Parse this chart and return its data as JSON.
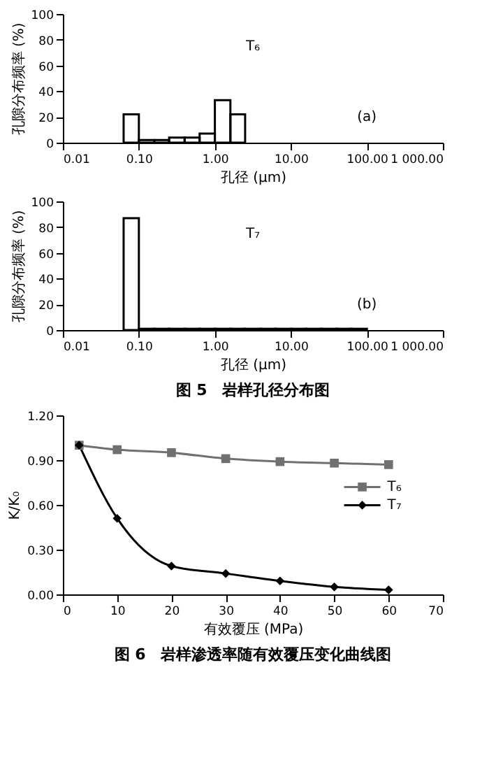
{
  "chart_data": [
    {
      "type": "histogram",
      "xlabel": "孔径 (μm)",
      "ylabel": "孔隙分布频率 (%)",
      "log": "x",
      "color": "#000000",
      "bins": [
        0.063,
        0.1,
        0.16,
        0.25,
        0.4,
        0.63,
        1.0,
        1.6,
        2.5
      ],
      "values": [
        22,
        2,
        2,
        4,
        4,
        7,
        33,
        22
      ],
      "xlim": [
        0.01,
        1000
      ],
      "xticks": [
        {
          "value": 0.01,
          "label": "0.01"
        },
        {
          "value": 0.1,
          "label": "0.10"
        },
        {
          "value": 1,
          "label": "1.00"
        },
        {
          "value": 10,
          "label": "10.00"
        },
        {
          "value": 100,
          "label": "100.00"
        },
        {
          "value": 1000,
          "label": "1 000.00"
        }
      ],
      "ylim": [
        0,
        100
      ],
      "yticks": [
        0,
        20,
        40,
        60,
        80,
        100
      ],
      "grid": false,
      "annotations": [
        "T₆",
        "(a)"
      ]
    },
    {
      "type": "histogram",
      "xlabel": "孔径 (μm)",
      "ylabel": "孔隙分布频率 (%)",
      "log": "x",
      "color": "#000000",
      "bins": [
        0.063,
        0.1,
        0.16,
        0.25,
        0.4,
        0.63,
        1.0,
        1.6,
        2.5,
        4.0,
        6.3,
        10,
        16,
        25,
        40,
        63,
        100
      ],
      "values": [
        87,
        1,
        1,
        1,
        1,
        1,
        1,
        1,
        1,
        1,
        1,
        1,
        1,
        1,
        1,
        1
      ],
      "xlim": [
        0.01,
        1000
      ],
      "xticks": [
        {
          "value": 0.01,
          "label": "0.01"
        },
        {
          "value": 0.1,
          "label": "0.10"
        },
        {
          "value": 1,
          "label": "1.00"
        },
        {
          "value": 10,
          "label": "10.00"
        },
        {
          "value": 100,
          "label": "100.00"
        },
        {
          "value": 1000,
          "label": "1 000.00"
        }
      ],
      "ylim": [
        0,
        100
      ],
      "yticks": [
        0,
        20,
        40,
        60,
        80,
        100
      ],
      "grid": false,
      "annotations": [
        "T₇",
        "(b)",
        "图 5　岩样孔径分布图"
      ]
    },
    {
      "type": "line",
      "xlabel": "有效覆压 (MPa)",
      "ylabel": "K/K₀",
      "x": [
        3,
        10,
        20,
        30,
        40,
        50,
        60
      ],
      "series": [
        {
          "name": "T₆",
          "color": "#707070",
          "marker": "square",
          "values": [
            1.0,
            0.97,
            0.95,
            0.91,
            0.89,
            0.88,
            0.87
          ]
        },
        {
          "name": "T₇",
          "color": "#000000",
          "marker": "diamond",
          "values": [
            1.0,
            0.51,
            0.19,
            0.14,
            0.09,
            0.05,
            0.03
          ]
        }
      ],
      "xlim": [
        0,
        70
      ],
      "xticks": [
        0,
        10,
        20,
        30,
        40,
        50,
        60,
        70
      ],
      "ylim": [
        0,
        1.2
      ],
      "yticks": [
        {
          "value": 0,
          "label": "0.00"
        },
        {
          "value": 0.3,
          "label": "0.30"
        },
        {
          "value": 0.6,
          "label": "0.60"
        },
        {
          "value": 0.9,
          "label": "0.90"
        },
        {
          "value": 1.2,
          "label": "1.20"
        }
      ],
      "grid": false,
      "legend": "right",
      "line_style": "solid",
      "annotations": [
        "图 6　岩样渗透率随有效覆压变化曲线图"
      ]
    }
  ]
}
